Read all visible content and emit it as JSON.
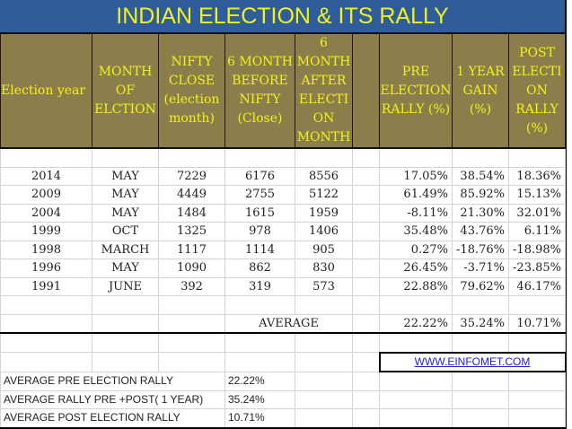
{
  "title": "INDIAN ELECTION & ITS RALLY",
  "headers": [
    "Election year",
    "MONTH OF ELCTION",
    "NIFTY CLOSE (election month)",
    "6 MONTH BEFORE NIFTY (Close)",
    "6 MONTH AFTER ELECTI ON MONTH",
    "",
    "PRE ELECTION RALLY (%)",
    "1 YEAR GAIN (%)",
    "POST ELECTI ON RALLY (%)"
  ],
  "rows": [
    [
      "2014",
      "MAY",
      "7229",
      "6176",
      "8556",
      "17.05%",
      "38.54%",
      "18.36%"
    ],
    [
      "2009",
      "MAY",
      "4449",
      "2755",
      "5122",
      "61.49%",
      "85.92%",
      "15.13%"
    ],
    [
      "2004",
      "MAY",
      "1484",
      "1615",
      "1959",
      "-8.11%",
      "21.30%",
      "32.01%"
    ],
    [
      "1999",
      "OCT",
      "1325",
      "978",
      "1406",
      "35.48%",
      "43.76%",
      "6.11%"
    ],
    [
      "1998",
      "MARCH",
      "1117",
      "1114",
      "905",
      "0.27%",
      "-18.76%",
      "-18.98%"
    ],
    [
      "1996",
      "MAY",
      "1090",
      "862",
      "830",
      "26.45%",
      "-3.71%",
      "-23.85%"
    ],
    [
      "1991",
      "JUNE",
      "392",
      "319",
      "573",
      "22.88%",
      "79.62%",
      "46.17%"
    ]
  ],
  "average": {
    "label": "AVERAGE",
    "pre": "22.22%",
    "year": "35.24%",
    "post": "10.71%"
  },
  "link": "WWW.EINFOMET.COM",
  "summary": [
    {
      "label": "AVERAGE PRE ELECTION RALLY",
      "value": "22.22%"
    },
    {
      "label": "AVERAGE RALLY PRE +POST( 1 YEAR)",
      "value": "35.24%"
    },
    {
      "label": "AVERAGE POST ELECTION RALLY",
      "value": "10.71%"
    }
  ],
  "colors": {
    "title_bg": "#2f5d9b",
    "header_bg": "#8c7e4b",
    "header_text": "#f2f21a",
    "link": "#2222cc"
  }
}
